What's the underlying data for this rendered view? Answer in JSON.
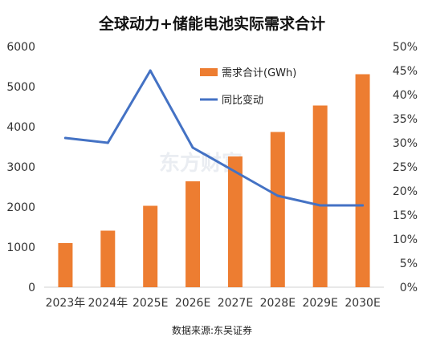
{
  "chart_data": {
    "type": "bar",
    "title": "全球动力+储能电池实际需求合计",
    "categories": [
      "2023年",
      "2024年",
      "2025E",
      "2026E",
      "2027E",
      "2028E",
      "2029E",
      "2030E"
    ],
    "series": [
      {
        "name": "需求合计(GWh)",
        "type": "bar",
        "axis": "left",
        "color": "#ED7D31",
        "values": [
          1100,
          1410,
          2030,
          2640,
          3260,
          3870,
          4530,
          5310
        ]
      },
      {
        "name": "同比变动",
        "type": "line",
        "axis": "right",
        "color": "#4472C4",
        "values": [
          31,
          30,
          45,
          29,
          24,
          19,
          17,
          17
        ]
      }
    ],
    "y_left": {
      "ylim": [
        0,
        6000
      ],
      "ticks": [
        "0",
        "1000",
        "2000",
        "3000",
        "4000",
        "5000",
        "6000"
      ]
    },
    "y_right": {
      "ylim": [
        0,
        50
      ],
      "ticks": [
        "0%",
        "5%",
        "10%",
        "15%",
        "20%",
        "25%",
        "30%",
        "35%",
        "40%",
        "45%",
        "50%"
      ]
    },
    "grid": false,
    "legend_position": "top-right",
    "source": "数据来源:东吴证券",
    "watermark": "东方财富"
  }
}
